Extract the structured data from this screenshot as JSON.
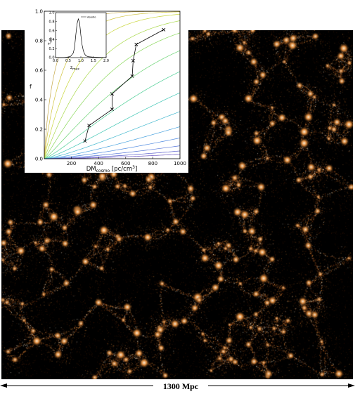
{
  "scale_label": "1300 Mpc",
  "colors": {
    "web_bright": "#fff3dc",
    "web_mid": "#e08a3a",
    "web_dim": "#7a3510",
    "background": "#000000"
  },
  "chart_data": [
    {
      "type": "line",
      "title": "",
      "xlabel": "DM",
      "xlabel_sub": "cosmo",
      "xlabel_unit": " [pc/cm",
      "xlabel_sup": "3",
      "xlabel_close": "]",
      "ylabel": "f",
      "xlim": [
        0,
        1000
      ],
      "ylim": [
        0,
        1
      ],
      "xticks": [
        "200",
        "400",
        "600",
        "800",
        "1000"
      ],
      "yticks": [
        "0.0",
        "0.2",
        "0.4",
        "0.6",
        "0.8",
        "1.0"
      ],
      "legend": "",
      "fan_colors": [
        "#c6a94a",
        "#d0c23a",
        "#c9d63a",
        "#a9d94a",
        "#8ad85a",
        "#6bd474",
        "#4fcf96",
        "#3fc6b4",
        "#42b8cf",
        "#4aa3df",
        "#4f8ae0",
        "#5474d8",
        "#5a5ecc",
        "#6b55c2"
      ],
      "series": [
        {
          "name": "",
          "x": [
            300,
            330,
            500,
            500,
            648,
            655,
            678,
            880
          ],
          "y": [
            0.12,
            0.225,
            0.335,
            0.44,
            0.56,
            0.665,
            0.775,
            0.875
          ]
        }
      ]
    },
    {
      "type": "line",
      "xlabel": "z",
      "xlabel_sub": "max",
      "ylabel": "T",
      "ylabel_sub": "exp",
      "xlim": [
        0,
        2
      ],
      "ylim": [
        0,
        1
      ],
      "xticks": [
        "0.0",
        "0.5",
        "1.0",
        "1.5",
        "2.0"
      ],
      "yticks": [
        "0.0",
        "0.2",
        "0.4",
        "0.6",
        "0.8",
        "1.0"
      ],
      "legend_label": "Apodio",
      "series": [
        {
          "name": "Apodio",
          "x": [
            0.0,
            0.3,
            0.5,
            0.6,
            0.7,
            0.75,
            0.8,
            0.85,
            0.9,
            0.95,
            1.0,
            1.05,
            1.1,
            1.15,
            1.2,
            1.3,
            1.5,
            2.0
          ],
          "y": [
            0.0,
            0.0,
            0.01,
            0.03,
            0.1,
            0.22,
            0.5,
            0.75,
            0.86,
            0.78,
            0.5,
            0.28,
            0.15,
            0.08,
            0.04,
            0.02,
            0.01,
            0.0
          ]
        }
      ]
    }
  ]
}
